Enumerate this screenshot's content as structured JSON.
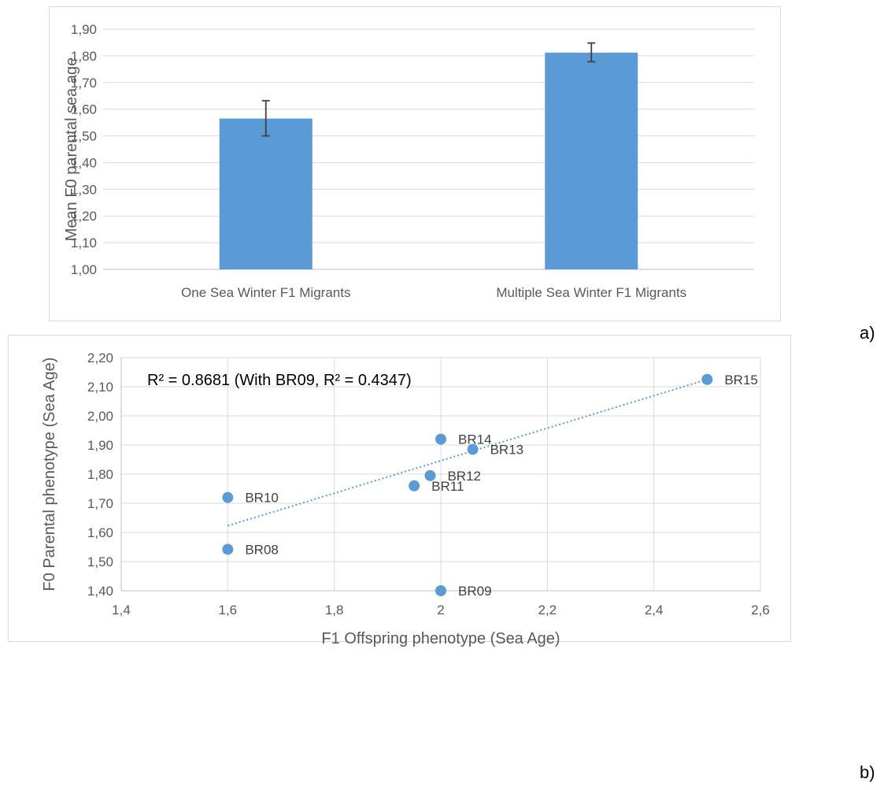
{
  "panel_tags": {
    "a": "a)",
    "b": "b)"
  },
  "chart_data": [
    {
      "type": "bar",
      "ylabel": "Mean F0 parental sea age",
      "xlabel": "",
      "ylim": [
        1.0,
        1.9
      ],
      "yticks": [
        "1,00",
        "1,10",
        "1,20",
        "1,30",
        "1,40",
        "1,50",
        "1,60",
        "1,70",
        "1,80",
        "1,90"
      ],
      "categories": [
        "One Sea Winter F1 Migrants",
        "Multiple Sea Winter F1 Migrants"
      ],
      "values": [
        1.565,
        1.812
      ],
      "error_low": [
        1.5,
        1.778
      ],
      "error_high": [
        1.632,
        1.848
      ],
      "grid": true,
      "bar_color": "#5b9bd5"
    },
    {
      "type": "scatter",
      "xlabel": "F1 Offspring phenotype (Sea Age)",
      "ylabel": "F0 Parental phenotype (Sea Age)",
      "xlim": [
        1.4,
        2.6
      ],
      "ylim": [
        1.4,
        2.2
      ],
      "xticks": [
        "1,4",
        "1,6",
        "1,8",
        "2",
        "2,2",
        "2,4",
        "2,6"
      ],
      "yticks": [
        "1,40",
        "1,50",
        "1,60",
        "1,70",
        "1,80",
        "1,90",
        "2,00",
        "2,10",
        "2,20"
      ],
      "annotation": "R² = 0.8681 (With BR09, R² = 0.4347)",
      "points": [
        {
          "label": "BR15",
          "x": 2.5,
          "y": 2.125
        },
        {
          "label": "BR14",
          "x": 2.0,
          "y": 1.92
        },
        {
          "label": "BR13",
          "x": 2.06,
          "y": 1.885
        },
        {
          "label": "BR12",
          "x": 1.98,
          "y": 1.795
        },
        {
          "label": "BR11",
          "x": 1.95,
          "y": 1.76
        },
        {
          "label": "BR10",
          "x": 1.6,
          "y": 1.72
        },
        {
          "label": "BR08",
          "x": 1.6,
          "y": 1.542
        },
        {
          "label": "BR09",
          "x": 2.0,
          "y": 1.4
        }
      ],
      "trendline": {
        "x1": 1.6,
        "y1": 1.623,
        "x2": 2.5,
        "y2": 2.125
      },
      "grid": true,
      "point_color": "#5b9bd5"
    }
  ]
}
